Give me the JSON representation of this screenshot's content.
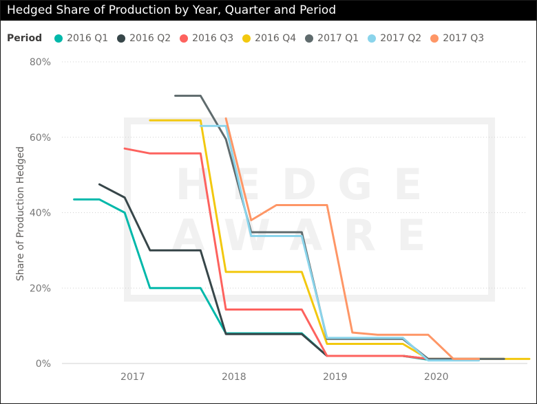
{
  "chart_data": {
    "type": "line",
    "title": "Hedged Share of Production by Year, Quarter and Period",
    "ylabel": "Share of Production Hedged",
    "xlabel": "",
    "legend_title": "Period",
    "legend_position": "top-left",
    "grid": "horizontal dashed",
    "ylim": [
      0,
      80
    ],
    "xlim": [
      2016.3,
      2020.9
    ],
    "y_ticks": [
      {
        "value": 0,
        "label": "0%"
      },
      {
        "value": 20,
        "label": "20%"
      },
      {
        "value": 40,
        "label": "40%"
      },
      {
        "value": 60,
        "label": "60%"
      },
      {
        "value": 80,
        "label": "80%"
      }
    ],
    "x_ticks": [
      {
        "value": 2017,
        "label": "2017"
      },
      {
        "value": 2018,
        "label": "2018"
      },
      {
        "value": 2019,
        "label": "2019"
      },
      {
        "value": 2020,
        "label": "2020"
      }
    ],
    "watermark": [
      "HEDGE",
      "AWARE"
    ],
    "series": [
      {
        "name": "2016 Q1",
        "color": "#01b8aa",
        "points": [
          [
            2016.42,
            43.5
          ],
          [
            2016.67,
            43.5
          ],
          [
            2016.92,
            40
          ],
          [
            2017.17,
            20
          ],
          [
            2017.42,
            20
          ],
          [
            2017.67,
            20
          ],
          [
            2017.92,
            8
          ],
          [
            2018.17,
            8
          ],
          [
            2018.42,
            8
          ],
          [
            2018.67,
            8
          ],
          [
            2018.92,
            2
          ],
          [
            2019.17,
            2
          ],
          [
            2019.42,
            2
          ],
          [
            2019.67,
            2
          ],
          [
            2019.92,
            1
          ],
          [
            2020.17,
            1
          ],
          [
            2020.42,
            1
          ]
        ]
      },
      {
        "name": "2016 Q2",
        "color": "#374649",
        "points": [
          [
            2016.67,
            47.5
          ],
          [
            2016.92,
            44
          ],
          [
            2017.17,
            30
          ],
          [
            2017.42,
            30
          ],
          [
            2017.67,
            30
          ],
          [
            2017.92,
            7.8
          ],
          [
            2018.17,
            7.8
          ],
          [
            2018.42,
            7.8
          ],
          [
            2018.67,
            7.8
          ],
          [
            2018.92,
            2
          ],
          [
            2019.17,
            2
          ],
          [
            2019.42,
            2
          ],
          [
            2019.67,
            2
          ],
          [
            2019.92,
            1.2
          ],
          [
            2020.17,
            1.2
          ],
          [
            2020.42,
            1.2
          ],
          [
            2020.67,
            1.2
          ]
        ]
      },
      {
        "name": "2016 Q3",
        "color": "#fd625e",
        "points": [
          [
            2016.92,
            57
          ],
          [
            2017.17,
            55.7
          ],
          [
            2017.42,
            55.7
          ],
          [
            2017.67,
            55.7
          ],
          [
            2017.92,
            14.3
          ],
          [
            2018.17,
            14.3
          ],
          [
            2018.42,
            14.3
          ],
          [
            2018.67,
            14.3
          ],
          [
            2018.92,
            2
          ],
          [
            2019.17,
            2
          ],
          [
            2019.42,
            2
          ],
          [
            2019.67,
            2
          ],
          [
            2019.92,
            1.2
          ],
          [
            2020.17,
            1.2
          ],
          [
            2020.42,
            1.2
          ]
        ]
      },
      {
        "name": "2016 Q4",
        "color": "#f2c80f",
        "points": [
          [
            2017.17,
            64.5
          ],
          [
            2017.42,
            64.5
          ],
          [
            2017.67,
            64.5
          ],
          [
            2017.92,
            24.3
          ],
          [
            2018.17,
            24.3
          ],
          [
            2018.42,
            24.3
          ],
          [
            2018.67,
            24.3
          ],
          [
            2018.92,
            5.2
          ],
          [
            2019.17,
            5.2
          ],
          [
            2019.42,
            5.2
          ],
          [
            2019.67,
            5.2
          ],
          [
            2019.92,
            1.2
          ],
          [
            2020.17,
            1.2
          ],
          [
            2020.42,
            1.2
          ],
          [
            2020.67,
            1.2
          ],
          [
            2020.92,
            1.2
          ]
        ]
      },
      {
        "name": "2017 Q1",
        "color": "#5f6b6d",
        "points": [
          [
            2017.42,
            71
          ],
          [
            2017.67,
            71
          ],
          [
            2017.92,
            59.5
          ],
          [
            2018.17,
            34.8
          ],
          [
            2018.42,
            34.8
          ],
          [
            2018.67,
            34.8
          ],
          [
            2018.92,
            6.5
          ],
          [
            2019.17,
            6.5
          ],
          [
            2019.42,
            6.5
          ],
          [
            2019.67,
            6.5
          ],
          [
            2019.92,
            1.2
          ],
          [
            2020.17,
            1.2
          ],
          [
            2020.42,
            1.2
          ],
          [
            2020.67,
            1.2
          ]
        ]
      },
      {
        "name": "2017 Q2",
        "color": "#8ad4eb",
        "points": [
          [
            2017.67,
            63
          ],
          [
            2017.92,
            63
          ],
          [
            2018.17,
            33.8
          ],
          [
            2018.42,
            33.8
          ],
          [
            2018.67,
            33.8
          ],
          [
            2018.92,
            6.8
          ],
          [
            2019.17,
            6.8
          ],
          [
            2019.42,
            6.8
          ],
          [
            2019.67,
            6.8
          ],
          [
            2019.92,
            0.8
          ],
          [
            2020.17,
            0.8
          ],
          [
            2020.42,
            0.8
          ]
        ]
      },
      {
        "name": "2017 Q3",
        "color": "#fe9666",
        "points": [
          [
            2017.92,
            65
          ],
          [
            2018.17,
            38
          ],
          [
            2018.42,
            42
          ],
          [
            2018.67,
            42
          ],
          [
            2018.92,
            42
          ],
          [
            2019.17,
            8.2
          ],
          [
            2019.42,
            7.6
          ],
          [
            2019.67,
            7.6
          ],
          [
            2019.92,
            7.6
          ],
          [
            2020.17,
            1.2
          ],
          [
            2020.42,
            1.2
          ]
        ]
      }
    ]
  }
}
